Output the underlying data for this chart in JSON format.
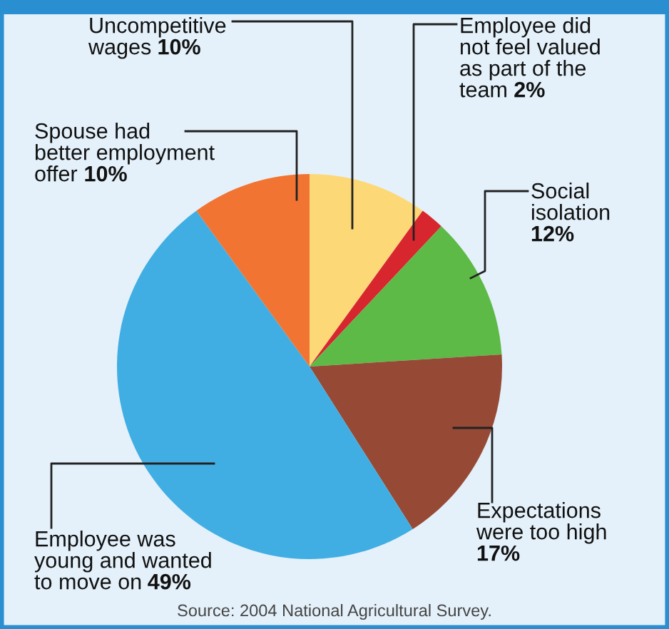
{
  "chart_data": {
    "type": "pie",
    "categories": [
      "Uncompetitive\nwages",
      "Employee did\nnot feel valued\nas part of the\nteam",
      "Social\nisolation",
      "Expectations\nwere too high",
      "Employee was\nyoung and wanted\nto move on",
      "Spouse had\nbetter employment\noffer"
    ],
    "values": [
      10,
      2,
      12,
      17,
      49,
      10
    ],
    "value_labels": [
      "10%",
      "2%",
      "12%",
      "17%",
      "49%",
      "10%"
    ],
    "colors": [
      "#fdd876",
      "#d8262e",
      "#5dba47",
      "#964a36",
      "#41aee3",
      "#f27433"
    ],
    "annotations": [
      "Source: 2004 National Agricultural Survey."
    ]
  }
}
